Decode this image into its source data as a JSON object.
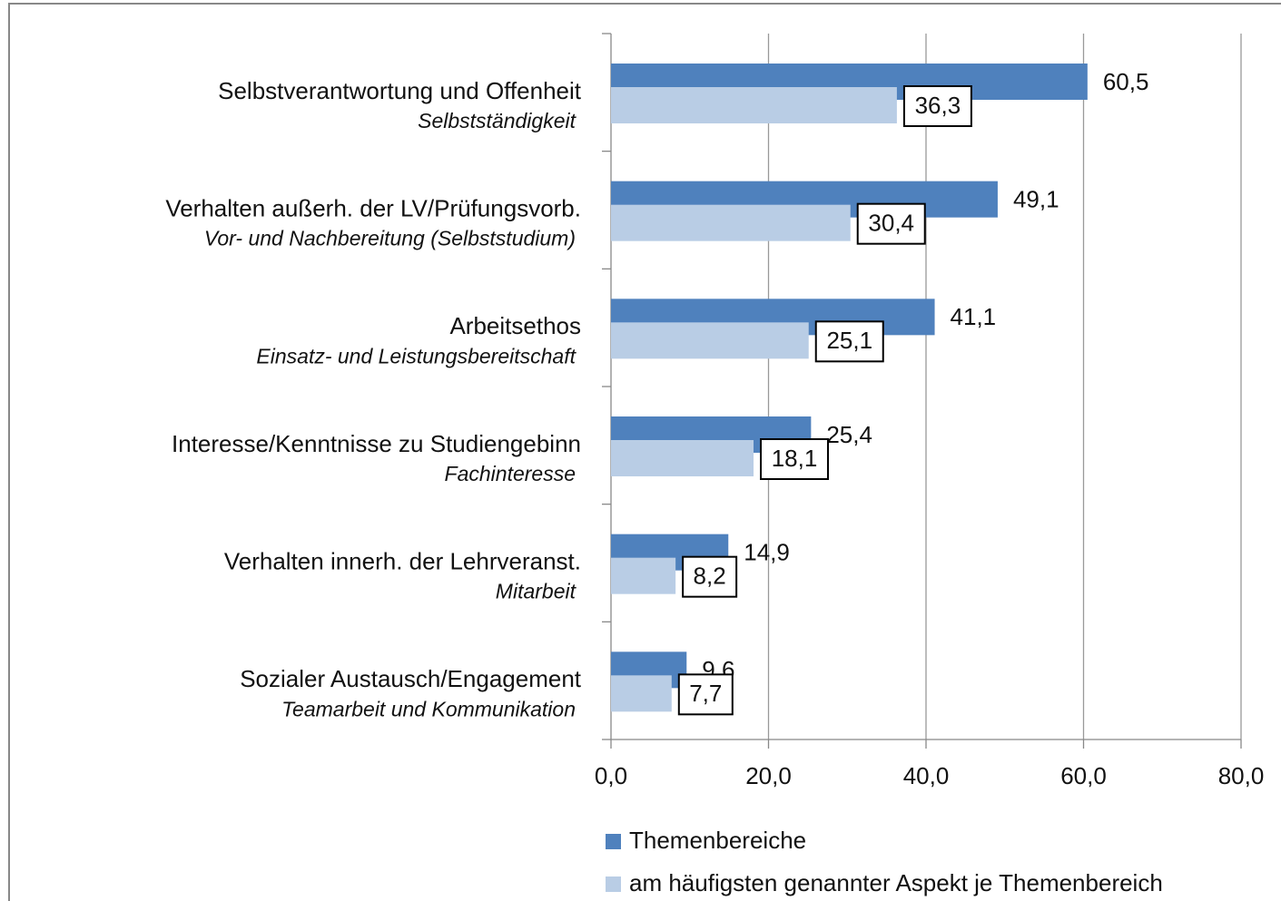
{
  "chart_data": {
    "type": "bar",
    "orientation": "horizontal",
    "categories": [
      "Selbstverantwortung und Offenheit",
      "Verhalten außerh. der LV/Prüfungsvorb.",
      "Arbeitsethos",
      "Interesse/Kenntnisse zu Studiengebinn",
      "Verhalten innerh. der Lehrveranst.",
      "Sozialer Austausch/Engagement"
    ],
    "subcategories": [
      "Selbstständigkeit",
      "Vor- und Nachbereitung (Selbststudium)",
      "Einsatz- und Leistungsbereitschaft",
      "Fachinteresse",
      "Mitarbeit",
      "Teamarbeit und Kommunikation"
    ],
    "series": [
      {
        "name": "Themenbereiche",
        "color": "#4f81bd",
        "values": [
          60.5,
          49.1,
          41.1,
          25.4,
          14.9,
          9.6
        ],
        "value_labels": [
          "60,5",
          "49,1",
          "41,1",
          "25,4",
          "14,9",
          "9,6"
        ]
      },
      {
        "name": "am häufigsten genannter Aspekt je Themenbereich",
        "color": "#b9cde5",
        "values": [
          36.3,
          30.4,
          25.1,
          18.1,
          8.2,
          7.7
        ],
        "value_labels": [
          "36,3",
          "30,4",
          "25,1",
          "18,1",
          "8,2",
          "7,7"
        ]
      }
    ],
    "xlim": [
      0,
      80
    ],
    "xticks": [
      {
        "value": 0,
        "label": "0,0"
      },
      {
        "value": 20,
        "label": "20,0"
      },
      {
        "value": 40,
        "label": "40,0"
      },
      {
        "value": 60,
        "label": "60,0"
      },
      {
        "value": 80,
        "label": "80,0"
      }
    ],
    "grid": true,
    "legend": "bottom"
  }
}
